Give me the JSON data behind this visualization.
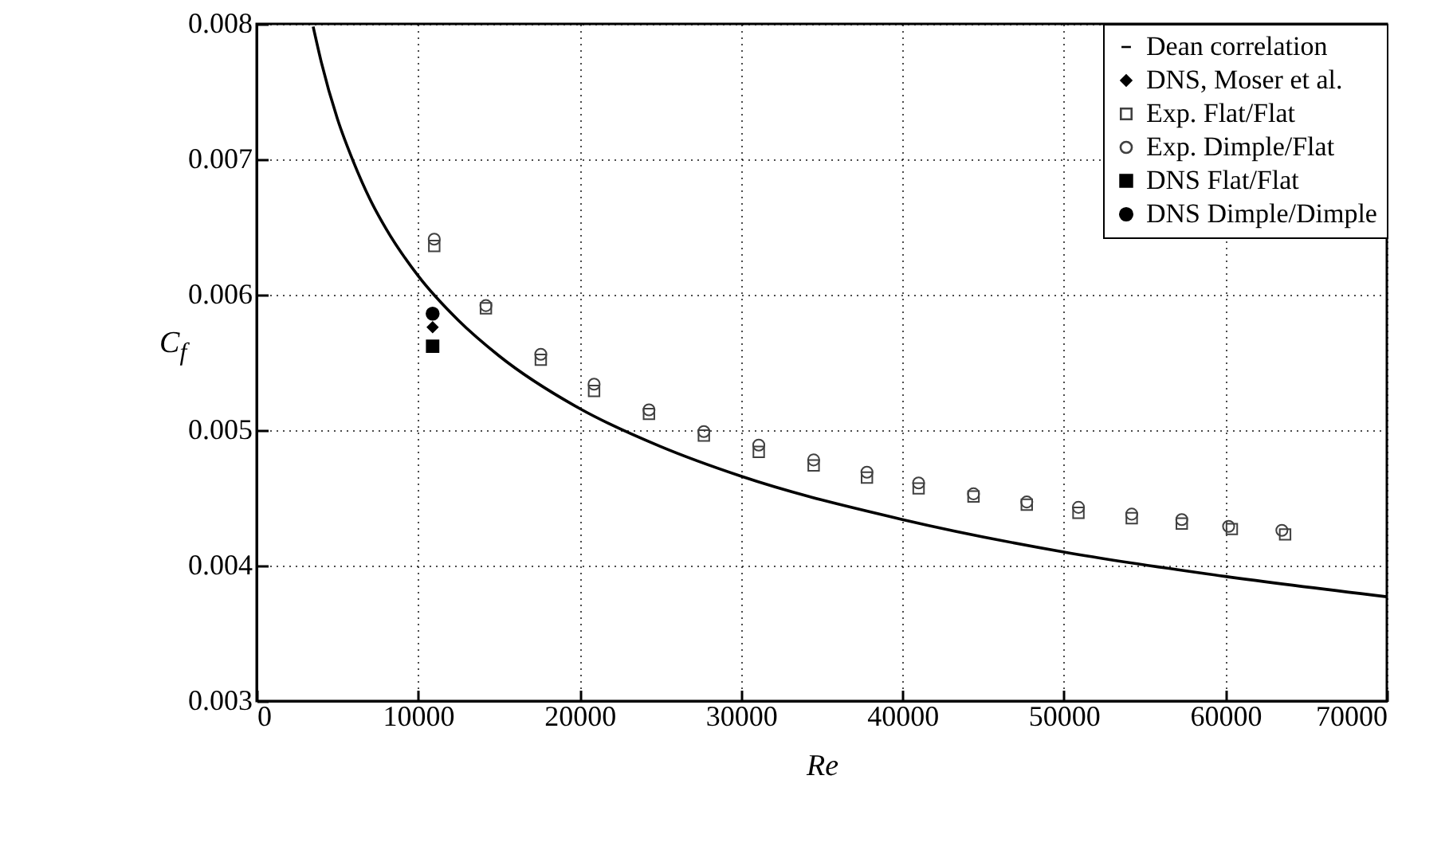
{
  "chart_data": {
    "type": "scatter",
    "xlabel": "Re",
    "ylabel": "C$_{f}$",
    "xlim": [
      0,
      70000
    ],
    "xticks": [
      0,
      10000,
      20000,
      30000,
      40000,
      50000,
      60000,
      70000
    ],
    "ylim": [
      0.003,
      0.008
    ],
    "yticks": [
      0.003,
      0.004,
      0.005,
      0.006,
      0.007,
      0.008
    ],
    "grid": true,
    "legend": "top right",
    "series": [
      {
        "name": "Dean correlation",
        "type": "line",
        "line_style": "solid",
        "marker": "none",
        "color": "#000000",
        "x": [
          3500,
          4000,
          5000,
          6000,
          7000,
          8000,
          10000,
          12500,
          15000,
          20000,
          25000,
          30000,
          40000,
          50000,
          60000,
          70000
        ],
        "values": [
          0.00798,
          0.00772,
          0.0073,
          0.00698,
          0.00671,
          0.00649,
          0.00614,
          0.00581,
          0.00555,
          0.00516,
          0.00488,
          0.00466,
          0.00434,
          0.0041,
          0.00392,
          0.00377
        ]
      },
      {
        "name": "DNS, Moser et al.",
        "marker": "diamond",
        "color": "#000000",
        "x": [
          10900
        ],
        "values": [
          0.00576
        ]
      },
      {
        "name": "Exp. Flat/Flat",
        "marker": "square",
        "color": "#404040",
        "x": [
          11000,
          14200,
          17600,
          20900,
          24300,
          27700,
          31100,
          34500,
          37800,
          41000,
          44400,
          47700,
          50900,
          54200,
          57300,
          60400,
          63700
        ],
        "values": [
          0.00636,
          0.0059,
          0.00552,
          0.00529,
          0.00512,
          0.00496,
          0.00484,
          0.00474,
          0.00465,
          0.00457,
          0.00451,
          0.00445,
          0.00439,
          0.00435,
          0.00431,
          0.00427,
          0.00423
        ]
      },
      {
        "name": "Exp. Dimple/Flat",
        "marker": "circle",
        "color": "#404040",
        "x": [
          11000,
          14200,
          17600,
          20900,
          24300,
          27700,
          31100,
          34500,
          37800,
          41000,
          44400,
          47700,
          50900,
          54200,
          57300,
          60200,
          63500
        ],
        "values": [
          0.00641,
          0.00592,
          0.00556,
          0.00534,
          0.00515,
          0.00499,
          0.00489,
          0.00478,
          0.00469,
          0.00461,
          0.00453,
          0.00447,
          0.00443,
          0.00438,
          0.00434,
          0.00429,
          0.00426
        ]
      },
      {
        "name": "DNS Flat/Flat",
        "marker": "square",
        "color": "#000000",
        "x": [
          10900
        ],
        "values": [
          0.00562
        ]
      },
      {
        "name": "DNS Dimple/Dimple",
        "marker": "circle",
        "color": "#000000",
        "x": [
          10900
        ],
        "values": [
          0.00586
        ]
      }
    ]
  }
}
